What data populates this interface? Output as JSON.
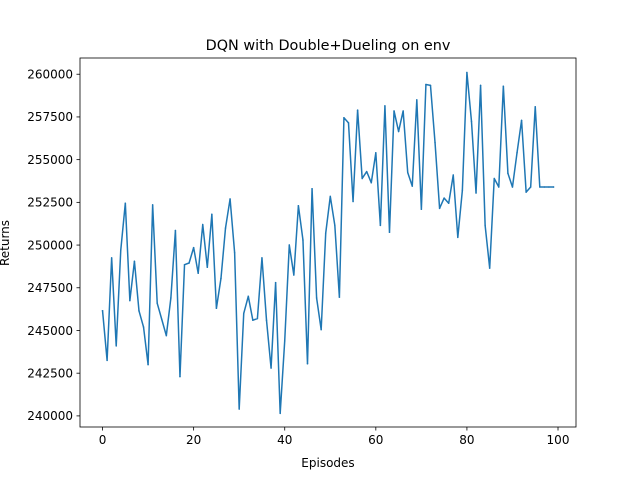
{
  "chart_data": {
    "type": "line",
    "title": "DQN with Double+Dueling on env",
    "xlabel": "Episodes",
    "ylabel": "Returns",
    "xlim": [
      -4.95,
      103.95
    ],
    "ylim": [
      239350,
      260950
    ],
    "xticks": [
      0,
      20,
      40,
      60,
      80,
      100
    ],
    "yticks": [
      240000,
      242500,
      245000,
      247500,
      250000,
      252500,
      255000,
      257500,
      260000
    ],
    "grid": false,
    "series": [
      {
        "color": "#1f77b4",
        "x": [
          0,
          1,
          2,
          3,
          4,
          5,
          6,
          7,
          8,
          9,
          10,
          11,
          12,
          13,
          14,
          15,
          16,
          17,
          18,
          19,
          20,
          21,
          22,
          23,
          24,
          25,
          26,
          27,
          28,
          29,
          30,
          31,
          32,
          33,
          34,
          35,
          36,
          37,
          38,
          39,
          40,
          41,
          42,
          43,
          44,
          45,
          46,
          47,
          48,
          49,
          50,
          51,
          52,
          53,
          54,
          55,
          56,
          57,
          58,
          59,
          60,
          61,
          62,
          63,
          64,
          65,
          66,
          67,
          68,
          69,
          70,
          71,
          72,
          73,
          74,
          75,
          76,
          77,
          78,
          79,
          80,
          81,
          82,
          83,
          84,
          85,
          86,
          87,
          88,
          89,
          90,
          91,
          92,
          93,
          94,
          95,
          96,
          97,
          98,
          99
        ],
        "values": [
          246150,
          243250,
          249250,
          244100,
          249700,
          252450,
          246750,
          249050,
          246150,
          245200,
          243000,
          252350,
          246600,
          245650,
          244700,
          246900,
          250850,
          242300,
          248850,
          248950,
          249850,
          248350,
          251200,
          248700,
          251800,
          246300,
          248050,
          251000,
          252700,
          249550,
          240400,
          246000,
          247000,
          245600,
          245700,
          249250,
          245600,
          242800,
          247800,
          240150,
          244400,
          250000,
          248250,
          252300,
          250300,
          243050,
          253300,
          246900,
          245050,
          250700,
          252850,
          251150,
          246950,
          257450,
          257150,
          252550,
          257900,
          253900,
          254300,
          253650,
          255400,
          251150,
          258150,
          250750,
          257850,
          256650,
          257850,
          254250,
          253450,
          258500,
          252100,
          259400,
          259350,
          256000,
          252150,
          252750,
          252450,
          254100,
          250450,
          253200,
          260100,
          257250,
          253050,
          259350,
          251150,
          248650,
          253900,
          253400,
          259300,
          254200,
          253400,
          255400,
          257300,
          253100,
          253400,
          258100,
          253400,
          253400,
          253400,
          253400
        ]
      }
    ]
  }
}
